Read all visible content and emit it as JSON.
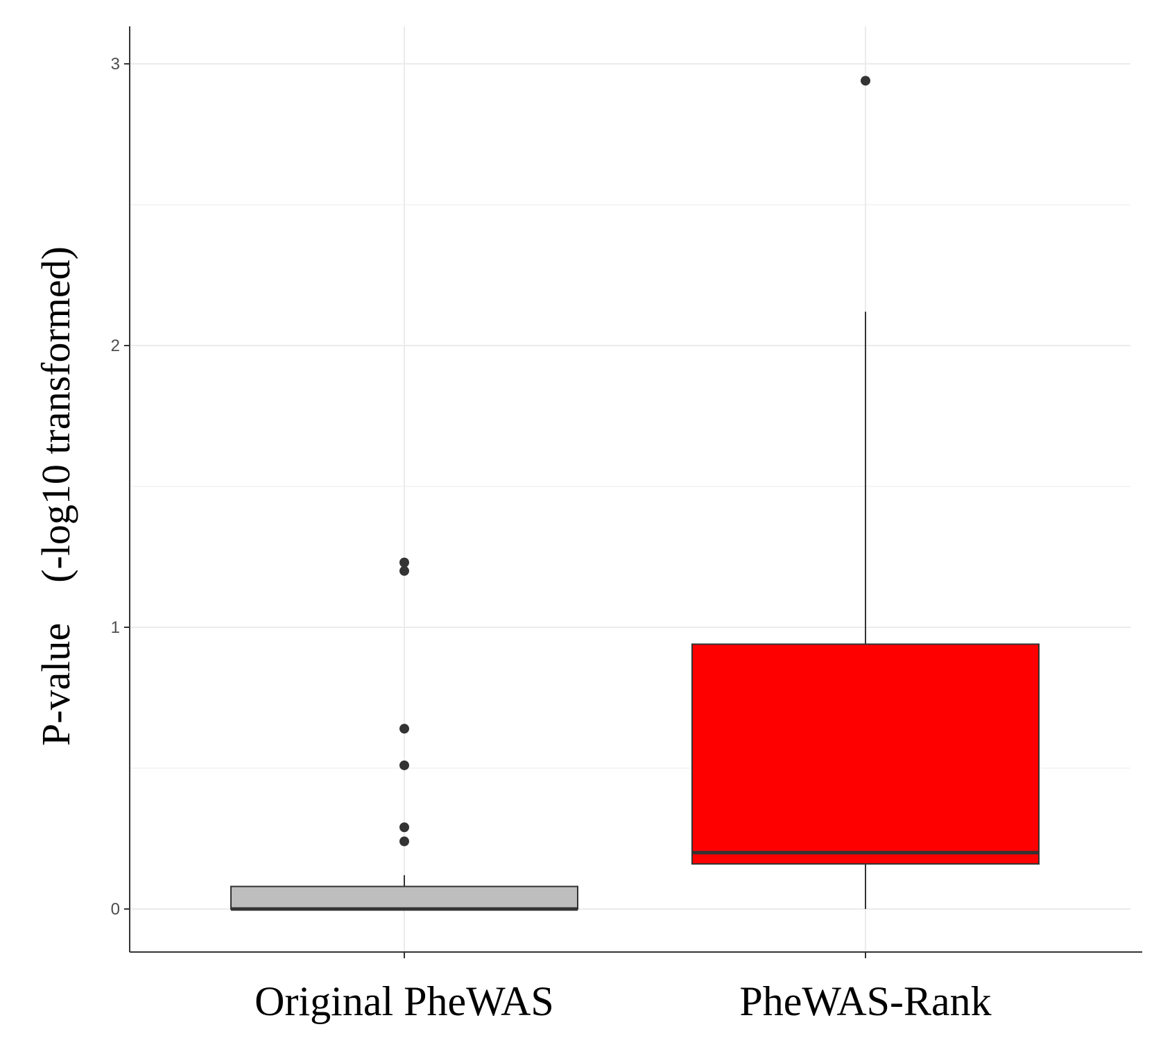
{
  "chart_data": {
    "type": "boxplot",
    "ylabel": "P-value　(-log10 transformed)",
    "categories": [
      "Original PheWAS",
      "PheWAS-Rank"
    ],
    "ylim": [
      -0.15,
      3.15
    ],
    "yticks": [
      0,
      1,
      2,
      3
    ],
    "ytick_labels": [
      "0",
      "1",
      "2",
      "3"
    ],
    "grid": true,
    "series": [
      {
        "category": "Original PheWAS",
        "color": "#bebebe",
        "whisker_low": 0,
        "q1": 0,
        "median": 0,
        "q3": 0.08,
        "whisker_high": 0.12,
        "outliers": [
          1.23,
          1.2,
          0.64,
          0.51,
          0.29,
          0.24
        ]
      },
      {
        "category": "PheWAS-Rank",
        "color": "#ff0000",
        "whisker_low": 0,
        "q1": 0.16,
        "median": 0.2,
        "q3": 0.94,
        "whisker_high": 2.12,
        "outliers": [
          2.94
        ]
      }
    ]
  }
}
